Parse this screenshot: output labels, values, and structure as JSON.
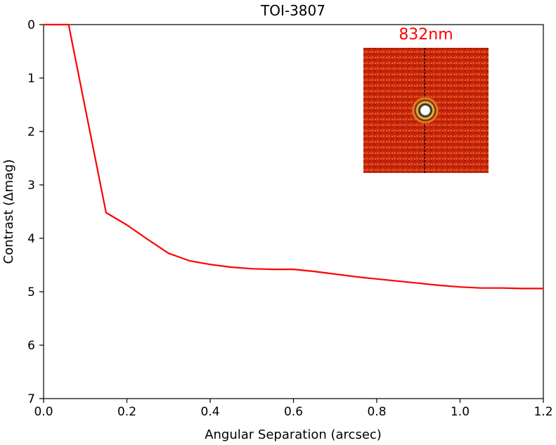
{
  "chart_data": {
    "type": "line",
    "title": "TOI-3807",
    "xlabel": "Angular Separation (arcsec)",
    "ylabel": "Contrast (Δmag)",
    "xlim": [
      0.0,
      1.2
    ],
    "ylim": [
      0,
      7
    ],
    "y_inverted": true,
    "x_ticks": [
      0.0,
      0.2,
      0.4,
      0.6,
      0.8,
      1.0,
      1.2
    ],
    "x_tick_labels": [
      "0.0",
      "0.2",
      "0.4",
      "0.6",
      "0.8",
      "1.0",
      "1.2"
    ],
    "y_ticks": [
      0,
      1,
      2,
      3,
      4,
      5,
      6,
      7
    ],
    "y_tick_labels": [
      "0",
      "1",
      "2",
      "3",
      "4",
      "5",
      "6",
      "7"
    ],
    "grid": false,
    "series": [
      {
        "color": "#ff0000",
        "x": [
          0.0,
          0.06,
          0.15,
          0.2,
          0.25,
          0.3,
          0.35,
          0.4,
          0.45,
          0.5,
          0.55,
          0.6,
          0.65,
          0.7,
          0.75,
          0.8,
          0.85,
          0.9,
          0.95,
          1.0,
          1.05,
          1.1,
          1.15,
          1.2
        ],
        "y": [
          0.0,
          0.0,
          3.52,
          3.75,
          4.02,
          4.28,
          4.42,
          4.49,
          4.54,
          4.57,
          4.58,
          4.58,
          4.62,
          4.67,
          4.72,
          4.76,
          4.8,
          4.84,
          4.88,
          4.91,
          4.93,
          4.93,
          4.94,
          4.94
        ]
      }
    ],
    "inset": {
      "label": "832nm",
      "label_color": "#ff0000",
      "background_color": "#cc2a0e",
      "core_color": "#ffffff"
    }
  }
}
